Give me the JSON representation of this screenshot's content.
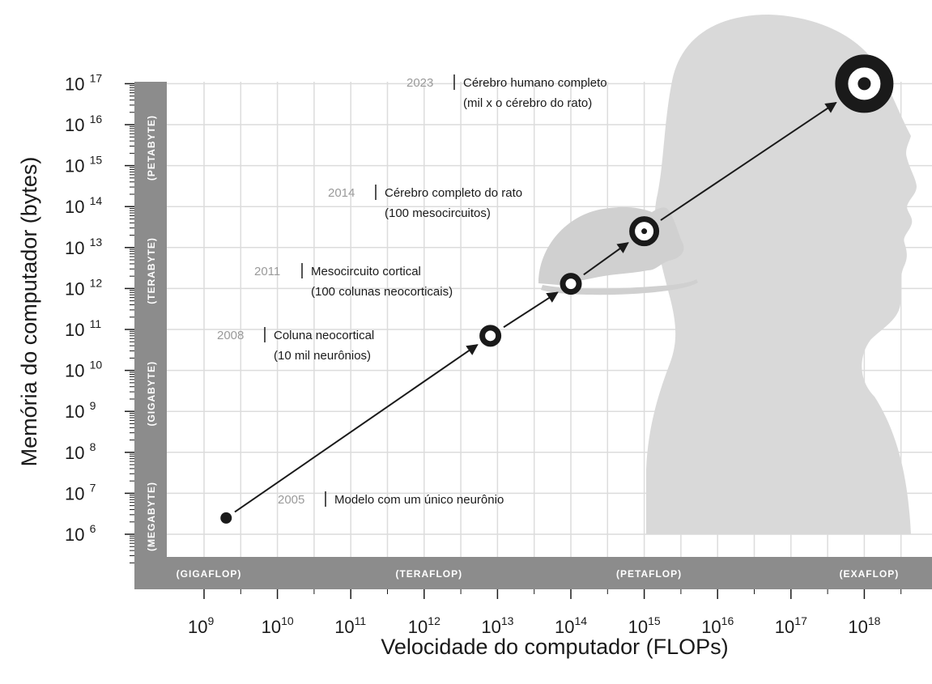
{
  "chart_data": {
    "type": "scatter",
    "xlabel": "Velocidade do computador (FLOPs)",
    "ylabel": "Memória do computador (bytes)",
    "x_scale": "log",
    "y_scale": "log",
    "x_ticks": [
      9,
      10,
      11,
      12,
      13,
      14,
      15,
      16,
      17,
      18
    ],
    "y_ticks": [
      6,
      7,
      8,
      9,
      10,
      11,
      12,
      13,
      14,
      15,
      16,
      17
    ],
    "tick_base": "10",
    "grid": true,
    "x_bands": [
      {
        "label": "(GIGAFLOP)",
        "exponent": 9
      },
      {
        "label": "(TERAFLOP)",
        "exponent": 12
      },
      {
        "label": "(PETAFLOP)",
        "exponent": 15
      },
      {
        "label": "(EXAFLOP)",
        "exponent": 18
      }
    ],
    "y_bands": [
      {
        "label": "(MEGABYTE)",
        "exponent": 6
      },
      {
        "label": "(GIGABYTE)",
        "exponent": 9
      },
      {
        "label": "(TERABYTE)",
        "exponent": 12
      },
      {
        "label": "(PETABYTE)",
        "exponent": 15
      }
    ],
    "points": [
      {
        "year": "2005",
        "label": "Modelo com um único neurônio",
        "sublabel": "",
        "x": 2000000000.0,
        "y": 2500000.0,
        "marker": "dot"
      },
      {
        "year": "2008",
        "label": "Coluna neocortical",
        "sublabel": "(10 mil neurônios)",
        "x": 8000000000000.0,
        "y": 70000000000.0,
        "marker": "ring-small"
      },
      {
        "year": "2011",
        "label": "Mesocircuito cortical",
        "sublabel": "(100 colunas neocorticais)",
        "x": 100000000000000.0,
        "y": 1300000000000.0,
        "marker": "ring-small"
      },
      {
        "year": "2014",
        "label": "Cérebro completo do rato",
        "sublabel": "(100 mesocircuitos)",
        "x": 1000000000000000.0,
        "y": 25000000000000.0,
        "marker": "ring-medium"
      },
      {
        "year": "2023",
        "label": "Cérebro humano completo",
        "sublabel": "(mil x o cérebro do rato)",
        "x": 1e+18,
        "y": 1e+17,
        "marker": "ring-large"
      }
    ],
    "colors": {
      "band": "#8c8c8c",
      "silhouette": "#d9d9d9",
      "grid": "#dcdcdc",
      "ink": "#1a1a1a",
      "year": "#9a9a9a"
    }
  }
}
